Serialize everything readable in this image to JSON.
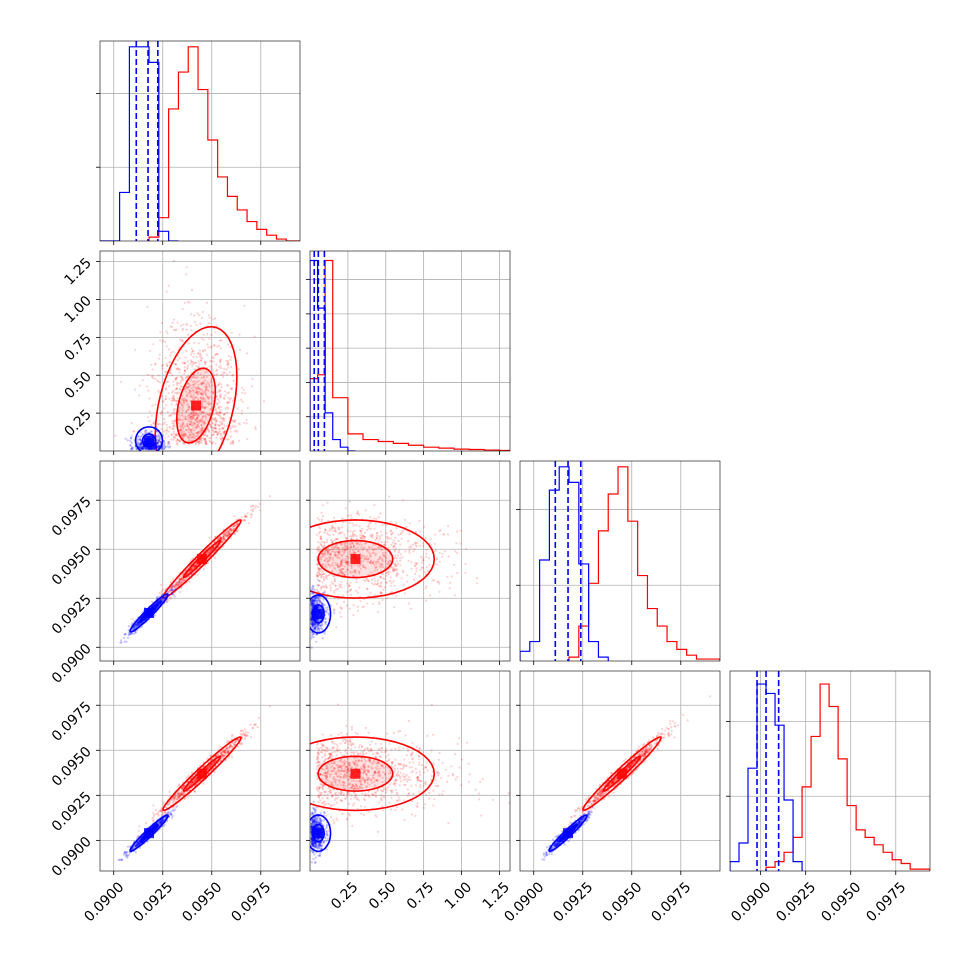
{
  "chart_data": {
    "type": "corner",
    "grid": true,
    "colors": {
      "blue": "#0000ff",
      "red": "#ff0000"
    },
    "series": [
      {
        "color": "blue"
      },
      {
        "color": "red"
      }
    ],
    "parameters": [
      {
        "range": [
          0.0893,
          0.0995
        ],
        "tick_values": [
          0.09,
          0.0925,
          0.095,
          0.0975
        ],
        "tick_labels": [
          "0.0900",
          "0.0925",
          "0.0950",
          "0.0975"
        ],
        "quantiles_blue": [
          0.09115,
          0.09175,
          0.09225
        ],
        "hist_blue": {
          "bins": [
            0.0893,
            0.0903,
            0.0908,
            0.0913,
            0.0918,
            0.0923,
            0.0928,
            0.0933
          ],
          "counts": [
            0.0,
            0.25,
            1.0,
            1.0,
            0.92,
            0.05,
            0.0
          ]
        },
        "hist_red": {
          "bins": [
            0.0918,
            0.0923,
            0.0928,
            0.0933,
            0.0938,
            0.0943,
            0.0948,
            0.0953,
            0.0958,
            0.0963,
            0.0968,
            0.0973,
            0.0978,
            0.0983,
            0.0988,
            0.0995
          ],
          "counts": [
            0.02,
            0.12,
            0.68,
            0.87,
            1.0,
            0.78,
            0.52,
            0.33,
            0.23,
            0.16,
            0.1,
            0.06,
            0.03,
            0.01,
            0.0
          ]
        },
        "ylim": [
          0,
          1.03
        ],
        "yticks": [
          0.38,
          0.76
        ]
      },
      {
        "range": [
          0.0,
          1.32
        ],
        "tick_values": [
          0.25,
          0.5,
          0.75,
          1.0,
          1.25
        ],
        "tick_labels": [
          "0.25",
          "0.50",
          "0.75",
          "1.00",
          "1.25"
        ],
        "quantiles_blue": [
          0.028,
          0.055,
          0.095
        ],
        "hist_blue": {
          "bins": [
            0.0,
            0.05,
            0.1,
            0.15,
            0.2,
            0.25,
            0.3
          ],
          "counts": [
            1.0,
            0.75,
            0.2,
            0.06,
            0.02,
            0.0
          ]
        },
        "hist_red": {
          "bins": [
            0.0,
            0.05,
            0.1,
            0.15,
            0.25,
            0.35,
            0.45,
            0.55,
            0.65,
            0.75,
            0.85,
            0.95,
            1.05,
            1.15,
            1.25,
            1.32
          ],
          "counts": [
            0.38,
            0.4,
            1.0,
            0.28,
            0.09,
            0.06,
            0.05,
            0.04,
            0.03,
            0.02,
            0.015,
            0.01,
            0.008,
            0.005,
            0.003
          ]
        },
        "ylim": [
          0,
          1.05
        ],
        "yticks": [
          0.18,
          0.36,
          0.54,
          0.72,
          0.9
        ]
      },
      {
        "range": [
          0.0893,
          0.0995
        ],
        "tick_values": [
          0.09,
          0.0925,
          0.095,
          0.0975
        ],
        "tick_labels": [
          "0.0900",
          "0.0925",
          "0.0950",
          "0.0975"
        ],
        "quantiles_blue": [
          0.0911,
          0.09175,
          0.0924
        ],
        "hist_blue": {
          "bins": [
            0.0893,
            0.0898,
            0.0903,
            0.0908,
            0.0913,
            0.0918,
            0.0923,
            0.0928,
            0.0933,
            0.0938
          ],
          "counts": [
            0.05,
            0.1,
            0.52,
            0.88,
            1.0,
            0.92,
            0.5,
            0.1,
            0.02
          ]
        },
        "hist_red": {
          "bins": [
            0.0918,
            0.0923,
            0.0928,
            0.0933,
            0.0938,
            0.0943,
            0.0948,
            0.0953,
            0.0958,
            0.0963,
            0.0968,
            0.0973,
            0.0978,
            0.0983,
            0.0988,
            0.0995
          ],
          "counts": [
            0.02,
            0.18,
            0.4,
            0.67,
            0.86,
            1.0,
            0.72,
            0.44,
            0.27,
            0.18,
            0.1,
            0.06,
            0.03,
            0.01,
            0.01
          ]
        },
        "ylim": [
          0,
          1.03
        ],
        "yticks": [
          0.39,
          0.78
        ]
      },
      {
        "range": [
          0.0883,
          0.0994
        ],
        "tick_values": [
          0.09,
          0.0925,
          0.095,
          0.0975
        ],
        "tick_labels": [
          "0.0900",
          "0.0925",
          "0.0950",
          "0.0975"
        ],
        "quantiles_blue": [
          0.0898,
          0.0903,
          0.091
        ],
        "hist_blue": {
          "bins": [
            0.0883,
            0.0888,
            0.0893,
            0.0898,
            0.0903,
            0.0908,
            0.0913,
            0.0918,
            0.0923
          ],
          "counts": [
            0.05,
            0.15,
            0.55,
            1.0,
            0.95,
            0.78,
            0.38,
            0.05
          ]
        },
        "hist_red": {
          "bins": [
            0.0903,
            0.0908,
            0.0913,
            0.0918,
            0.0923,
            0.0928,
            0.0933,
            0.0938,
            0.0943,
            0.0948,
            0.0953,
            0.0958,
            0.0963,
            0.0968,
            0.0973,
            0.0978,
            0.0983,
            0.0988,
            0.0994
          ],
          "counts": [
            0.02,
            0.05,
            0.1,
            0.18,
            0.45,
            0.72,
            1.0,
            0.88,
            0.6,
            0.35,
            0.22,
            0.18,
            0.14,
            0.1,
            0.06,
            0.04,
            0.01,
            0.01
          ]
        },
        "ylim": [
          0,
          1.07
        ],
        "yticks": [
          0.4,
          0.8
        ]
      }
    ],
    "density_panels": [
      {
        "x_param": 0,
        "y_param": 1,
        "blue": {
          "center": [
            0.0918,
            0.07
          ],
          "cov": [
            [
              1.3e-07,
              0.0
            ],
            [
              0.0,
              0.0022
            ]
          ],
          "n_points": 520,
          "contours": [
            [
              0.0914,
              0.052,
              0.00045,
              0.025
            ],
            [
              0.0918,
              0.07,
              0.0013,
              0.06
            ]
          ]
        },
        "red": {
          "center": [
            0.0942,
            0.3
          ],
          "cov": [
            [
              1.2e-06,
              0.00011
            ],
            [
              0.00011,
              0.075
            ]
          ],
          "n_points": 1200,
          "contours": [
            [
              0.0939,
              0.14,
              0.00045,
              0.03
            ],
            [
              0.0945,
              0.17,
              0.00115,
              0.06
            ]
          ]
        }
      },
      {
        "x_param": 0,
        "y_param": 2,
        "blue": {
          "center": [
            0.0918,
            0.09175
          ],
          "cov": [
            [
              2.6e-07,
              2.5e-07
            ],
            [
              2.5e-07,
              2.6e-07
            ]
          ],
          "n_points": 700,
          "contours": [
            [
              0.0916,
              0.0915
            ],
            [
              0.0918,
              0.0917
            ]
          ]
        },
        "red": {
          "center": [
            0.0945,
            0.0945
          ],
          "cov": [
            [
              1.1e-06,
              1.08e-06
            ],
            [
              1.08e-06,
              1.1e-06
            ]
          ],
          "n_points": 900,
          "contours": [
            [
              0.094,
              0.094
            ],
            [
              0.0945,
              0.0945
            ]
          ]
        }
      },
      {
        "x_param": 1,
        "y_param": 2,
        "blue": {
          "center": [
            0.055,
            0.0917
          ],
          "cov": [
            [
              0.0018,
              0.0
            ],
            [
              0.0,
              2.6e-07
            ]
          ],
          "n_points": 600,
          "contours": [
            [
              0.045,
              0.0915
            ],
            [
              0.06,
              0.0917
            ]
          ]
        },
        "red": {
          "center": [
            0.3,
            0.0945
          ],
          "cov": [
            [
              0.075,
              0.0
            ],
            [
              0.0,
              1.1e-06
            ]
          ],
          "n_points": 1000,
          "contours": [
            [
              0.12,
              0.094
            ],
            [
              0.18,
              0.0945
            ]
          ]
        }
      },
      {
        "x_param": 0,
        "y_param": 3,
        "blue": {
          "center": [
            0.0918,
            0.0904
          ],
          "cov": [
            [
              2.6e-07,
              2.6e-07
            ],
            [
              2.6e-07,
              2.8e-07
            ]
          ],
          "n_points": 700,
          "contours": [
            [
              0.0915,
              0.0902
            ],
            [
              0.0918,
              0.0904
            ]
          ]
        },
        "red": {
          "center": [
            0.0945,
            0.0937
          ],
          "cov": [
            [
              1.1e-06,
              1.1e-06
            ],
            [
              1.1e-06,
              1.15e-06
            ]
          ],
          "n_points": 900,
          "contours": [
            [
              0.094,
              0.0933
            ],
            [
              0.0945,
              0.0937
            ]
          ]
        }
      },
      {
        "x_param": 1,
        "y_param": 3,
        "blue": {
          "center": [
            0.055,
            0.0904
          ],
          "cov": [
            [
              0.0018,
              0.0
            ],
            [
              0.0,
              2.8e-07
            ]
          ],
          "n_points": 600,
          "contours": [
            [
              0.045,
              0.0902
            ],
            [
              0.06,
              0.0904
            ]
          ]
        },
        "red": {
          "center": [
            0.3,
            0.0937
          ],
          "cov": [
            [
              0.075,
              0.0
            ],
            [
              0.0,
              1.15e-06
            ]
          ],
          "n_points": 1000,
          "contours": [
            [
              0.12,
              0.0933
            ],
            [
              0.18,
              0.0937
            ]
          ]
        }
      },
      {
        "x_param": 2,
        "y_param": 3,
        "blue": {
          "center": [
            0.09175,
            0.0904
          ],
          "cov": [
            [
              2.6e-07,
              2.6e-07
            ],
            [
              2.6e-07,
              2.8e-07
            ]
          ],
          "n_points": 700,
          "contours": [
            [
              0.0915,
              0.0902
            ],
            [
              0.0917,
              0.0904
            ]
          ]
        },
        "red": {
          "center": [
            0.0945,
            0.0937
          ],
          "cov": [
            [
              1.1e-06,
              1.1e-06
            ],
            [
              1.1e-06,
              1.15e-06
            ]
          ],
          "n_points": 900,
          "contours": [
            [
              0.094,
              0.0933
            ],
            [
              0.0945,
              0.0937
            ]
          ]
        }
      }
    ]
  }
}
